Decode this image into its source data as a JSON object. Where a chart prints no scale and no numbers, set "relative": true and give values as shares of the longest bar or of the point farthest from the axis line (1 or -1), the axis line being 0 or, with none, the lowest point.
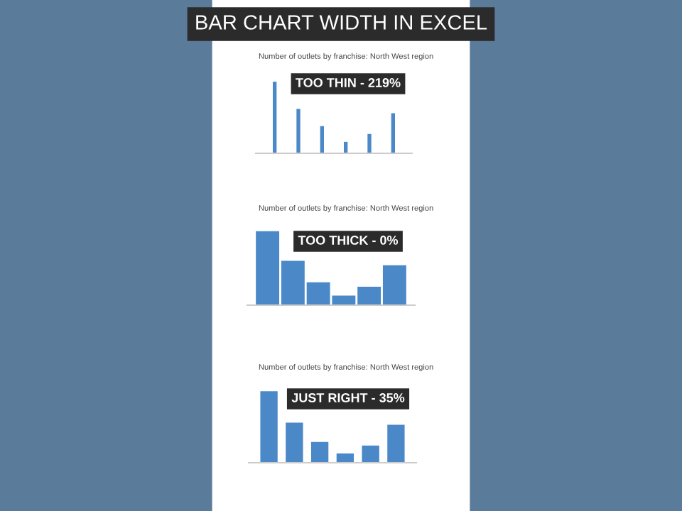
{
  "chart_data": [
    {
      "type": "other",
      "title": "BAR CHART WIDTH IN EXCEL"
    },
    {
      "type": "bar",
      "title": "Number of outlets by franchise: North West region",
      "categories": [
        null,
        null,
        null,
        null,
        null,
        null
      ],
      "values": [
        1,
        0.62,
        0.38,
        0.16,
        0.27,
        0.56
      ],
      "relative": true,
      "color": "#4a88c8",
      "annotations": [
        "TOO THIN - 219%"
      ],
      "grid": false
    },
    {
      "type": "bar",
      "title": "Number of outlets by franchise: North West region",
      "categories": [
        null,
        null,
        null,
        null,
        null,
        null
      ],
      "values": [
        1,
        0.6,
        0.31,
        0.13,
        0.25,
        0.54
      ],
      "relative": true,
      "color": "#4a88c8",
      "annotations": [
        "TOO THICK - 0%"
      ],
      "grid": false
    },
    {
      "type": "bar",
      "title": "Number of outlets by franchise: North West region",
      "categories": [
        null,
        null,
        null,
        null,
        null,
        null
      ],
      "values": [
        1,
        0.56,
        0.29,
        0.13,
        0.24,
        0.53
      ],
      "relative": true,
      "color": "#4a88c8",
      "annotations": [
        "JUST RIGHT - 35%"
      ],
      "grid": false
    }
  ]
}
